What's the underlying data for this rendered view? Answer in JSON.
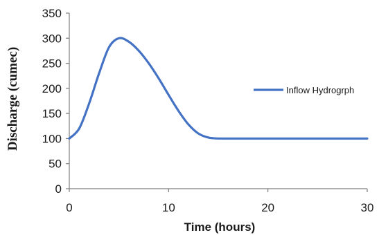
{
  "chart_data": {
    "type": "line",
    "xlabel": "Time (hours)",
    "ylabel": "Discharge (cumec)",
    "xlim": [
      0,
      30
    ],
    "ylim": [
      0,
      350
    ],
    "x_ticks": [
      "0",
      "10",
      "20",
      "30"
    ],
    "y_ticks": [
      "0",
      "50",
      "100",
      "150",
      "200",
      "250",
      "300",
      "350"
    ],
    "grid": false,
    "legend_position": "right",
    "series": [
      {
        "name": "Inflow Hydrogrph",
        "color": "#4472c4",
        "x": [
          0,
          1,
          2,
          3,
          4,
          5,
          6,
          7,
          8,
          9,
          10,
          11,
          12,
          13,
          14,
          15,
          16,
          20,
          25,
          30
        ],
        "y": [
          100,
          120,
          170,
          230,
          282,
          300,
          293,
          275,
          250,
          220,
          187,
          155,
          128,
          110,
          102,
          100,
          100,
          100,
          100,
          100
        ]
      }
    ]
  }
}
